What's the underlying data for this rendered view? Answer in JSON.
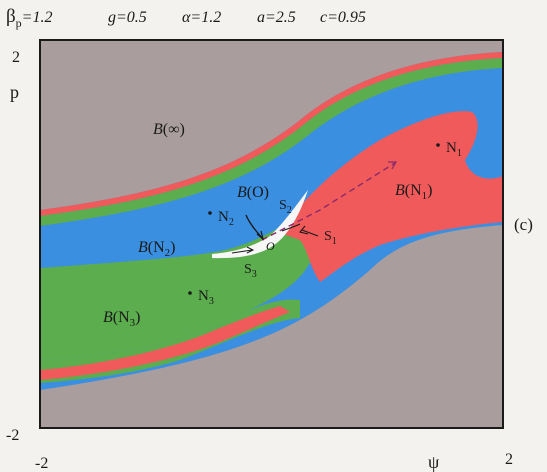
{
  "params": {
    "beta_symbol": "β",
    "beta_sub": "p",
    "beta_eq": "=1.2",
    "g": "g=0.5",
    "alpha": "α=1.2",
    "a": "a=2.5",
    "c": "c=0.95"
  },
  "axes": {
    "x_label": "ψ",
    "y_label": "p",
    "x_min_label": "-2",
    "x_max_label": "2",
    "y_min_label": "-2",
    "y_max_label": "2"
  },
  "panel_tag": "(c)",
  "regions": {
    "infinity": {
      "B": "B",
      "arg": "(∞)"
    },
    "origin": {
      "B": "B",
      "arg": "(O)"
    },
    "n1": {
      "B": "B",
      "arg": "(N",
      "sub": "1",
      "close": ")"
    },
    "n2": {
      "B": "B",
      "arg": "(N",
      "sub": "2",
      "close": ")"
    },
    "n3": {
      "B": "B",
      "arg": "(N",
      "sub": "3",
      "close": ")"
    }
  },
  "points": {
    "N1": {
      "name": "N",
      "sub": "1"
    },
    "N2": {
      "name": "N",
      "sub": "2"
    },
    "N3": {
      "name": "N",
      "sub": "3"
    },
    "S1": {
      "name": "S",
      "sub": "1"
    },
    "S2": {
      "name": "S",
      "sub": "2"
    },
    "S3": {
      "name": "S",
      "sub": "3"
    },
    "O": {
      "name": "O"
    }
  },
  "colors": {
    "background_region": "#a99d9d",
    "blue": "#3a8fe0",
    "green": "#5cad4e",
    "red": "#f05a5a",
    "white": "#f7f7f7",
    "frame": "#1a1a1a"
  }
}
